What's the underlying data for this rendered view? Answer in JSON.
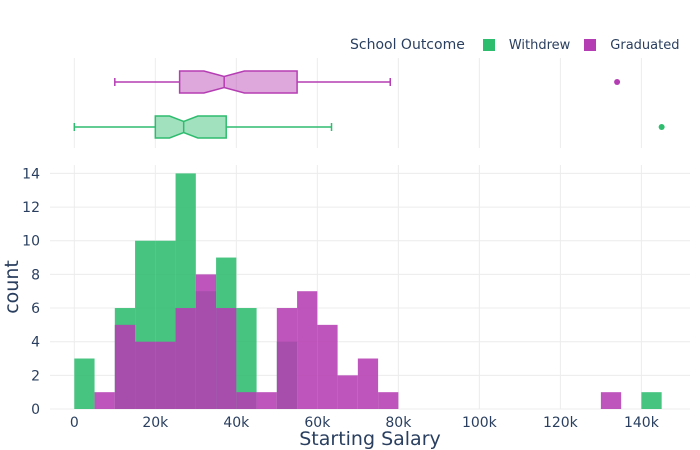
{
  "chart_data": {
    "type": "histogram",
    "xlabel": "Starting Salary",
    "ylabel": "count",
    "xlim": [
      -6000,
      152000
    ],
    "ylim": [
      0,
      14.5
    ],
    "x_ticks": [
      {
        "value": 0,
        "label": "0"
      },
      {
        "value": 20000,
        "label": "20k"
      },
      {
        "value": 40000,
        "label": "40k"
      },
      {
        "value": 60000,
        "label": "60k"
      },
      {
        "value": 80000,
        "label": "80k"
      },
      {
        "value": 100000,
        "label": "100k"
      },
      {
        "value": 120000,
        "label": "120k"
      },
      {
        "value": 140000,
        "label": "140k"
      }
    ],
    "y_ticks": [
      0,
      2,
      4,
      6,
      8,
      10,
      12,
      14
    ],
    "bin_width": 5000,
    "barmode": "overlay",
    "grid": true,
    "legend": {
      "title": "School Outcome",
      "placement": "top-right"
    },
    "series": [
      {
        "name": "Withdrew",
        "color": "#2ebc6e",
        "bins": [
          {
            "start": 0,
            "count": 3
          },
          {
            "start": 10000,
            "count": 6
          },
          {
            "start": 15000,
            "count": 10
          },
          {
            "start": 20000,
            "count": 10
          },
          {
            "start": 25000,
            "count": 14
          },
          {
            "start": 30000,
            "count": 7
          },
          {
            "start": 35000,
            "count": 9
          },
          {
            "start": 40000,
            "count": 6
          },
          {
            "start": 50000,
            "count": 4
          },
          {
            "start": 140000,
            "count": 1
          }
        ],
        "box": {
          "min": 0,
          "q1": 20000,
          "median": 27000,
          "q3": 37500,
          "max": 63500,
          "notch_low": 23500,
          "notch_high": 30500,
          "outliers": [
            145000
          ]
        }
      },
      {
        "name": "Graduated",
        "color": "#b53db3",
        "bins": [
          {
            "start": 5000,
            "count": 1
          },
          {
            "start": 10000,
            "count": 5
          },
          {
            "start": 15000,
            "count": 4
          },
          {
            "start": 20000,
            "count": 4
          },
          {
            "start": 25000,
            "count": 6
          },
          {
            "start": 30000,
            "count": 8
          },
          {
            "start": 35000,
            "count": 6
          },
          {
            "start": 40000,
            "count": 1
          },
          {
            "start": 45000,
            "count": 1
          },
          {
            "start": 50000,
            "count": 6
          },
          {
            "start": 55000,
            "count": 7
          },
          {
            "start": 60000,
            "count": 5
          },
          {
            "start": 65000,
            "count": 2
          },
          {
            "start": 70000,
            "count": 3
          },
          {
            "start": 75000,
            "count": 1
          },
          {
            "start": 130000,
            "count": 1
          }
        ],
        "box": {
          "min": 10000,
          "q1": 26000,
          "median": 37000,
          "q3": 55000,
          "max": 78000,
          "notch_low": 32000,
          "notch_high": 42000,
          "outliers": [
            134000
          ]
        }
      }
    ]
  }
}
